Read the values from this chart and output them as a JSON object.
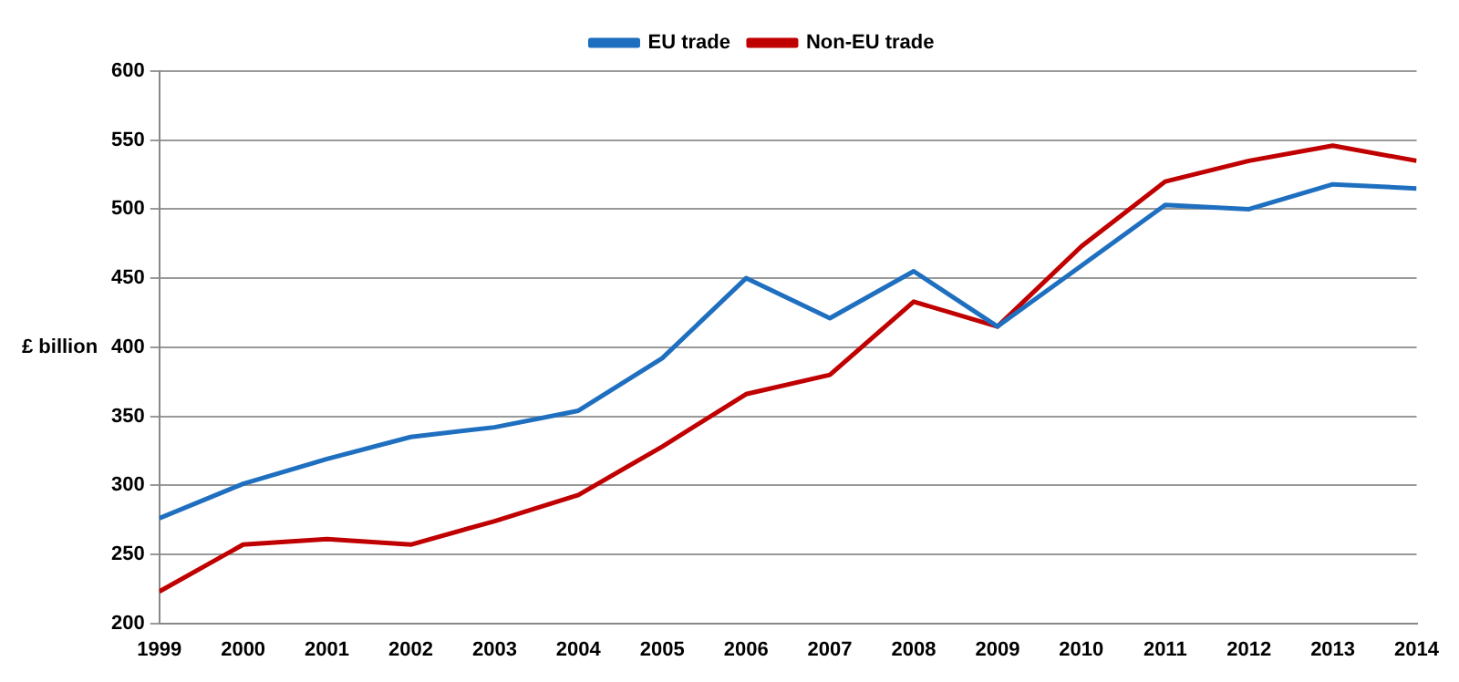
{
  "chart_data": {
    "type": "line",
    "ylabel": "£ billion",
    "x": [
      1999,
      2000,
      2001,
      2002,
      2003,
      2004,
      2005,
      2006,
      2007,
      2008,
      2009,
      2010,
      2011,
      2012,
      2013,
      2014
    ],
    "series": [
      {
        "name": "EU trade",
        "color": "#1f6fc0",
        "values": [
          276,
          301,
          319,
          335,
          342,
          354,
          392,
          450,
          421,
          455,
          415,
          459,
          503,
          500,
          518,
          515
        ]
      },
      {
        "name": "Non-EU trade",
        "color": "#c00000",
        "values": [
          223,
          257,
          261,
          257,
          274,
          293,
          328,
          366,
          380,
          433,
          415,
          473,
          520,
          535,
          546,
          535
        ]
      }
    ],
    "xlim": [
      1999,
      2014
    ],
    "xticks": [
      1999,
      2000,
      2001,
      2002,
      2003,
      2004,
      2005,
      2006,
      2007,
      2008,
      2009,
      2010,
      2011,
      2012,
      2013,
      2014
    ],
    "ylim": [
      200,
      600
    ],
    "yticks": [
      200,
      250,
      300,
      350,
      400,
      450,
      500,
      550,
      600
    ],
    "grid": "y",
    "legend": "top",
    "marker": "none",
    "line_style": "solid"
  }
}
